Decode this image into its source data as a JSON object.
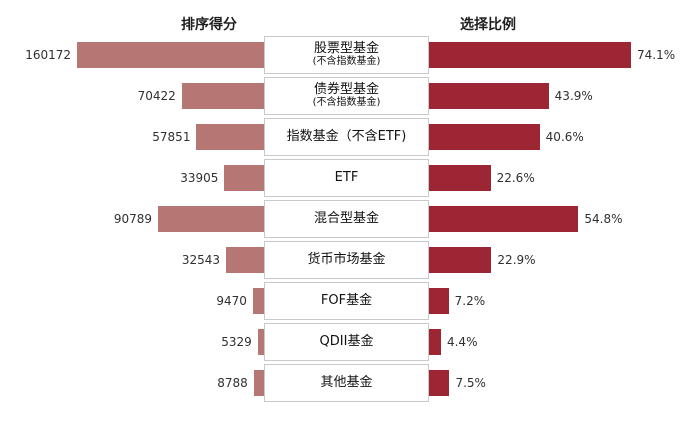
{
  "chart_data": {
    "type": "bar",
    "left_title": "排序得分",
    "right_title": "选择比例",
    "categories": [
      {
        "label": "股票型基金",
        "sub": "(不含指数基金)"
      },
      {
        "label": "债券型基金",
        "sub": "(不含指数基金)"
      },
      {
        "label": "指数基金（不含ETF)",
        "sub": ""
      },
      {
        "label": "ETF",
        "sub": ""
      },
      {
        "label": "混合型基金",
        "sub": ""
      },
      {
        "label": "货币市场基金",
        "sub": ""
      },
      {
        "label": "FOF基金",
        "sub": ""
      },
      {
        "label": "QDII基金",
        "sub": ""
      },
      {
        "label": "其他基金",
        "sub": ""
      }
    ],
    "series": [
      {
        "name": "排序得分",
        "values": [
          160172,
          70422,
          57851,
          33905,
          90789,
          32543,
          9470,
          5329,
          8788
        ],
        "labels": [
          "160172",
          "70422",
          "57851",
          "33905",
          "90789",
          "32543",
          "9470",
          "5329",
          "8788"
        ],
        "color": "#b67674"
      },
      {
        "name": "选择比例",
        "values": [
          74.1,
          43.9,
          40.6,
          22.6,
          54.8,
          22.9,
          7.2,
          4.4,
          7.5
        ],
        "labels": [
          "74.1%",
          "43.9%",
          "40.6%",
          "22.6%",
          "54.8%",
          "22.9%",
          "7.2%",
          "4.4%",
          "7.5%"
        ],
        "color": "#9d2635"
      }
    ],
    "left_max": 160172,
    "right_max": 74.1
  }
}
